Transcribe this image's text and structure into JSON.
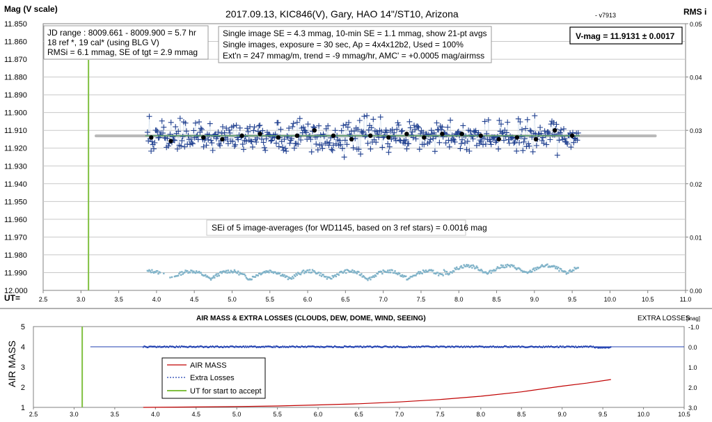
{
  "top_chart": {
    "title_main": "2017.09.13,  KIC846(V),  Gary,  HAO  14\"/ST10, Arizona",
    "title_version": "- v7913",
    "ylabel": "Mag (V scale)",
    "y2label": "RMS i",
    "ut_label": "UT=",
    "y_ticks": [
      "11.850",
      "11.860",
      "11.870",
      "11.880",
      "11.890",
      "11.900",
      "11.910",
      "11.920",
      "11.930",
      "11.940",
      "11.950",
      "11.960",
      "11.970",
      "11.980",
      "11.990",
      "12.000"
    ],
    "x_ticks": [
      "2.5",
      "3.0",
      "3.5",
      "4.0",
      "4.5",
      "5.0",
      "5.5",
      "6.0",
      "6.5",
      "7.0",
      "7.5",
      "8.0",
      "8.5",
      "9.0",
      "9.5",
      "10.0",
      "10.5",
      "11.0"
    ],
    "y2_ticks": [
      "0.05",
      "0.04",
      "0.03",
      "0.02",
      "0.01",
      "0.00"
    ],
    "info_box_left": [
      "JD range : 8009.661 - 8009.900 =  5.7  hr",
      "18 ref *, 19 cal* (using BLG V)",
      "RMSi = 6.1 mmag, SE of tgt = 2.9 mmag"
    ],
    "info_box_mid": [
      "Single image SE = 4.3 mmag, 10-min SE = 1.1 mmag, show 21-pt avgs",
      "Single images, exposure = 30 sec, Ap = 4x4x12b2, Used = 100%",
      "Ext'n = 247 mmag/m, trend = -9 mmag/hr, AMC' = +0.0005 mag/airmss"
    ],
    "vmag_box": "V-mag = 11.9131 ± 0.0017",
    "sei_note": "SEi of 5 image-averages (for WD1145, based on 3 ref stars) = 0.0016 mag"
  },
  "bottom_chart": {
    "title": "AIR MASS & EXTRA LOSSES (CLOUDS, DEW, DOME, WIND, SEEING)",
    "y2label": "EXTRA LOSSES",
    "y2unit": "[mag]",
    "ylabel": "AIR MASS",
    "y_ticks": [
      "5",
      "4",
      "3",
      "2",
      "1"
    ],
    "y2_ticks": [
      "-1.0",
      "0.0",
      "1.0",
      "2.0",
      "3.0"
    ],
    "x_ticks": [
      "2.5",
      "3.0",
      "3.5",
      "4.0",
      "4.5",
      "5.0",
      "5.5",
      "6.0",
      "6.5",
      "7.0",
      "7.5",
      "8.0",
      "8.5",
      "9.0",
      "9.5",
      "10.0",
      "10.5"
    ],
    "legend": [
      "AIR MASS",
      "Extra Losses",
      "UT for start to accept"
    ]
  },
  "colors": {
    "target_points": "#1f3f8f",
    "rms_points": "#7fb2c8",
    "avg_points": "#000000",
    "fit_line": "#b8b8b8",
    "trend_line": "#5aa06a",
    "start_line": "#80c040",
    "airmass_line": "#c00000",
    "extra_losses": "#1f3fb0"
  },
  "chart_data": [
    {
      "type": "scatter",
      "title": "2017.09.13,  KIC846(V),  Gary,  HAO  14\"/ST10, Arizona",
      "xlabel": "UT",
      "ylabel": "Mag (V scale)",
      "y2label": "RMS i",
      "xlim": [
        2.5,
        11.0
      ],
      "ylim": [
        12.0,
        11.85
      ],
      "y2lim": [
        0.0,
        0.05
      ],
      "ut_start_accept": 3.1,
      "fitted_mag": 11.9131,
      "series": [
        {
          "name": "21-pt avgs",
          "x": [
            3.93,
            4.19,
            4.62,
            4.87,
            5.13,
            5.37,
            5.61,
            5.86,
            6.09,
            6.34,
            6.58,
            6.83,
            7.07,
            7.31,
            7.54,
            7.78,
            8.04,
            8.29,
            8.53,
            8.77,
            9.02,
            9.27,
            9.5
          ],
          "y": [
            11.914,
            11.916,
            11.914,
            11.915,
            11.913,
            11.912,
            11.914,
            11.913,
            11.91,
            11.913,
            11.915,
            11.913,
            11.914,
            11.912,
            11.914,
            11.912,
            11.912,
            11.913,
            11.915,
            11.914,
            11.915,
            11.91,
            11.913
          ]
        },
        {
          "name": "trend",
          "x": [
            3.85,
            9.6
          ],
          "y": [
            11.913,
            11.913
          ]
        }
      ]
    },
    {
      "type": "line",
      "title": "AIR MASS & EXTRA LOSSES (CLOUDS, DEW, DOME, WIND, SEEING)",
      "ylabel": "AIR MASS",
      "y2label": "EXTRA LOSSES [mag]",
      "xlim": [
        2.5,
        10.5
      ],
      "ylim": [
        1,
        5
      ],
      "y2lim": [
        3.0,
        -1.0
      ],
      "ut_start_accept": 3.1,
      "series": [
        {
          "name": "AIR MASS",
          "x": [
            3.85,
            4.5,
            5.0,
            5.5,
            6.0,
            6.5,
            7.0,
            7.5,
            8.0,
            8.5,
            9.0,
            9.3,
            9.6
          ],
          "y": [
            1.0,
            1.02,
            1.04,
            1.07,
            1.12,
            1.18,
            1.27,
            1.39,
            1.55,
            1.77,
            2.05,
            2.2,
            2.38
          ]
        },
        {
          "name": "Extra Losses",
          "x": [
            3.2,
            4.0,
            5.0,
            6.0,
            7.0,
            8.0,
            9.0,
            9.6
          ],
          "y": [
            0.0,
            0.0,
            0.0,
            0.0,
            0.0,
            0.0,
            0.0,
            0.02
          ]
        }
      ]
    }
  ]
}
